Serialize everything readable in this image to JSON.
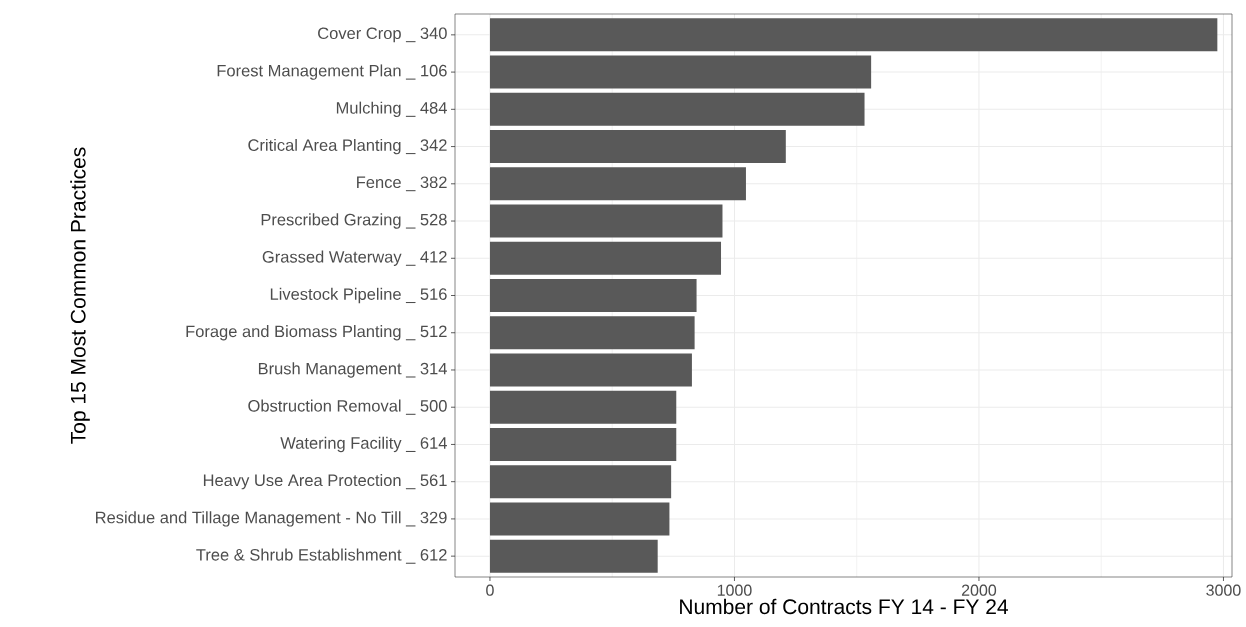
{
  "chart_data": {
    "type": "bar",
    "orientation": "horizontal",
    "xlabel": "Number of Contracts FY 14 - FY 24",
    "ylabel": "Top 15 Most Common Practices",
    "categories": [
      "Cover Crop _ 340",
      "Forest Management Plan _ 106",
      "Mulching _ 484",
      "Critical Area Planting _ 342",
      "Fence _ 382",
      "Prescribed Grazing _ 528",
      "Grassed Waterway _ 412",
      "Livestock Pipeline _ 516",
      "Forage and Biomass Planting _ 512",
      "Brush Management _ 314",
      "Obstruction Removal _ 500",
      "Watering Facility _ 614",
      "Heavy Use Area Protection _ 561",
      "Residue and Tillage Management - No Till _ 329",
      "Tree & Shrub Establishment _ 612"
    ],
    "values": [
      2975,
      1559,
      1532,
      1210,
      1047,
      951,
      945,
      845,
      837,
      826,
      762,
      762,
      741,
      734,
      686
    ],
    "color": "#595959",
    "xlim": [
      -143,
      3035
    ],
    "xticks": [
      0,
      {
        "value": 500,
        "label": null
      },
      1000,
      {
        "value": 1500,
        "label": null
      },
      2000,
      {
        "value": 2500,
        "label": null
      },
      3000
    ],
    "grid": true
  }
}
